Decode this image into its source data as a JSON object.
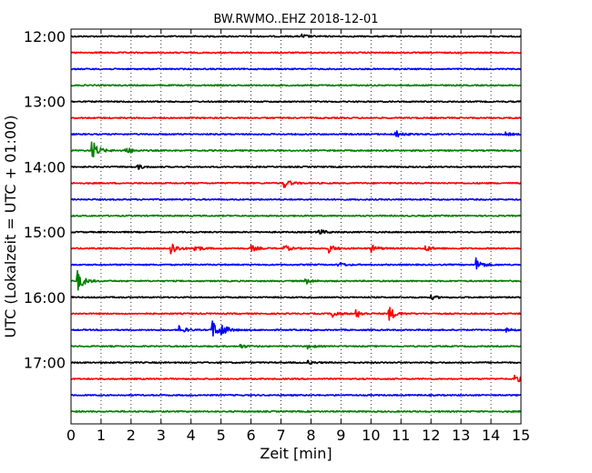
{
  "chart_data": {
    "type": "line",
    "title": "BW.RWMO..EHZ 2018-12-01",
    "xlabel": "Zeit  [min]",
    "ylabel": "UTC (Lokalzeit = UTC + 01:00)",
    "xlim": [
      0,
      15
    ],
    "x_ticks": [
      "0",
      "1",
      "2",
      "3",
      "4",
      "5",
      "6",
      "7",
      "8",
      "9",
      "10",
      "11",
      "12",
      "13",
      "14",
      "15"
    ],
    "y_tick_labels": [
      "12:00",
      "13:00",
      "14:00",
      "15:00",
      "16:00",
      "17:00"
    ],
    "grid": "vertical dotted",
    "line_colors": [
      "#000000",
      "#ff0000",
      "#0000ff",
      "#008000"
    ],
    "traces": [
      {
        "start": "12:00",
        "events": [
          [
            7.7,
            0.25
          ]
        ]
      },
      {
        "start": "12:15",
        "events": []
      },
      {
        "start": "12:30",
        "events": []
      },
      {
        "start": "12:45",
        "events": []
      },
      {
        "start": "13:00",
        "events": []
      },
      {
        "start": "13:15",
        "events": []
      },
      {
        "start": "13:30",
        "events": [
          [
            10.8,
            0.5
          ],
          [
            14.5,
            0.2
          ]
        ]
      },
      {
        "start": "13:45",
        "events": [
          [
            0.7,
            1.3
          ],
          [
            1.8,
            0.5
          ]
        ]
      },
      {
        "start": "14:00",
        "events": [
          [
            2.2,
            0.3
          ]
        ]
      },
      {
        "start": "14:15",
        "events": [
          [
            7.1,
            0.6
          ]
        ]
      },
      {
        "start": "14:30",
        "events": []
      },
      {
        "start": "14:45",
        "events": []
      },
      {
        "start": "15:00",
        "events": [
          [
            8.2,
            0.5
          ]
        ]
      },
      {
        "start": "15:15",
        "events": [
          [
            3.3,
            1.0
          ],
          [
            4.1,
            0.5
          ],
          [
            6.0,
            0.4
          ],
          [
            7.1,
            0.4
          ],
          [
            8.6,
            0.5
          ],
          [
            10.0,
            0.45
          ],
          [
            11.8,
            0.4
          ]
        ]
      },
      {
        "start": "15:30",
        "events": [
          [
            8.9,
            0.3
          ],
          [
            13.5,
            0.8
          ]
        ]
      },
      {
        "start": "15:45",
        "events": [
          [
            0.2,
            1.4
          ],
          [
            7.8,
            0.4
          ]
        ]
      },
      {
        "start": "16:00",
        "events": [
          [
            12.0,
            0.25
          ]
        ]
      },
      {
        "start": "16:15",
        "events": [
          [
            8.7,
            0.5
          ],
          [
            9.5,
            0.5
          ],
          [
            10.6,
            0.9
          ]
        ]
      },
      {
        "start": "16:30",
        "events": [
          [
            3.6,
            0.5
          ],
          [
            4.7,
            1.2
          ],
          [
            5.0,
            0.7
          ],
          [
            14.5,
            0.2
          ]
        ]
      },
      {
        "start": "16:45",
        "events": [
          [
            5.6,
            0.3
          ],
          [
            7.9,
            0.25
          ]
        ]
      },
      {
        "start": "17:00",
        "events": [
          [
            7.9,
            0.2
          ]
        ]
      },
      {
        "start": "17:15",
        "events": [
          [
            14.8,
            0.5
          ]
        ]
      },
      {
        "start": "17:30",
        "events": []
      },
      {
        "start": "17:45",
        "events": []
      }
    ]
  }
}
